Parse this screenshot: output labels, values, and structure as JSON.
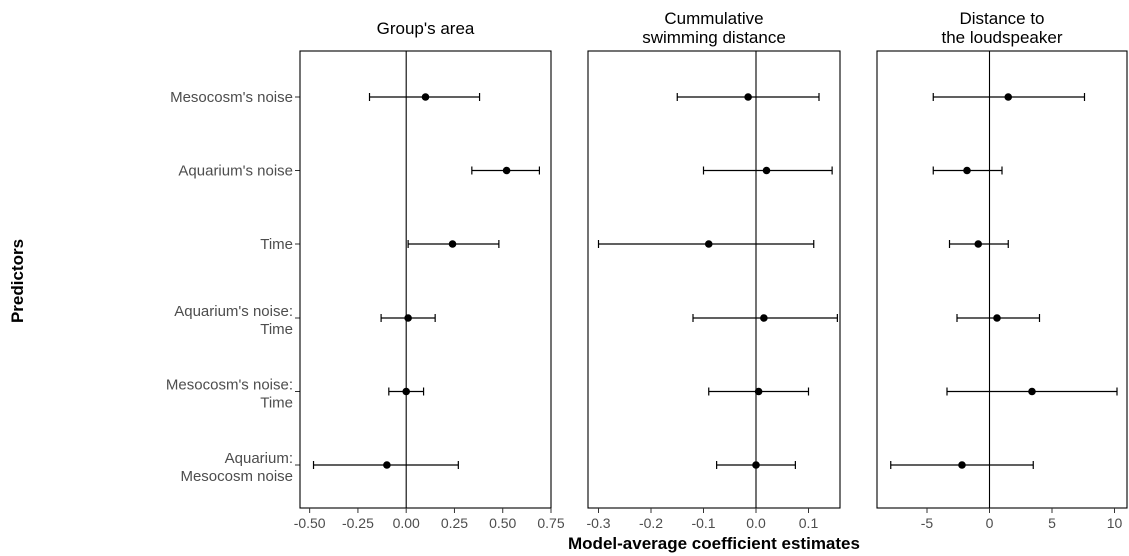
{
  "chart_data": {
    "type": "forest",
    "xlabel": "Model-average coefficient estimates",
    "ylabel": "Predictors",
    "predictors": [
      [
        "Mesocosm's noise"
      ],
      [
        "Aquarium's noise"
      ],
      [
        "Time"
      ],
      [
        "Aquarium's noise:",
        "Time"
      ],
      [
        "Mesocosm's noise:",
        "Time"
      ],
      [
        "Aquarium:",
        "Mesocosm noise"
      ]
    ],
    "panels": [
      {
        "title": [
          "Group's area"
        ],
        "xlim": [
          -0.55,
          0.75
        ],
        "ticks": [
          -0.5,
          -0.25,
          0,
          0.25,
          0.5,
          0.75
        ],
        "tick_labels": [
          "-0.50",
          "-0.25",
          "0.00",
          "0.25",
          "0.50",
          "0.75"
        ],
        "estimates": [
          0.1,
          0.52,
          0.24,
          0.01,
          0.0,
          -0.1
        ],
        "lower": [
          -0.19,
          0.34,
          0.01,
          -0.13,
          -0.09,
          -0.48
        ],
        "upper": [
          0.38,
          0.69,
          0.48,
          0.15,
          0.09,
          0.27
        ]
      },
      {
        "title": [
          "Cummulative",
          "swimming distance"
        ],
        "xlim": [
          -0.32,
          0.16
        ],
        "ticks": [
          -0.3,
          -0.2,
          -0.1,
          0,
          0.1
        ],
        "tick_labels": [
          "-0.3",
          "-0.2",
          "-0.1",
          "0.0",
          "0.1"
        ],
        "estimates": [
          -0.015,
          0.02,
          -0.09,
          0.015,
          0.005,
          0.0
        ],
        "lower": [
          -0.15,
          -0.1,
          -0.3,
          -0.12,
          -0.09,
          -0.075
        ],
        "upper": [
          0.12,
          0.145,
          0.11,
          0.155,
          0.1,
          0.075
        ]
      },
      {
        "title": [
          "Distance to",
          "the loudspeaker"
        ],
        "xlim": [
          -9,
          11
        ],
        "ticks": [
          -5,
          0,
          5,
          10
        ],
        "tick_labels": [
          "-5",
          "0",
          "5",
          "10"
        ],
        "estimates": [
          1.5,
          -1.8,
          -0.9,
          0.6,
          3.4,
          -2.2
        ],
        "lower": [
          -4.5,
          -4.5,
          -3.2,
          -2.6,
          -3.4,
          -7.9
        ],
        "upper": [
          7.6,
          1.0,
          1.5,
          4.0,
          10.2,
          3.5
        ]
      }
    ]
  }
}
